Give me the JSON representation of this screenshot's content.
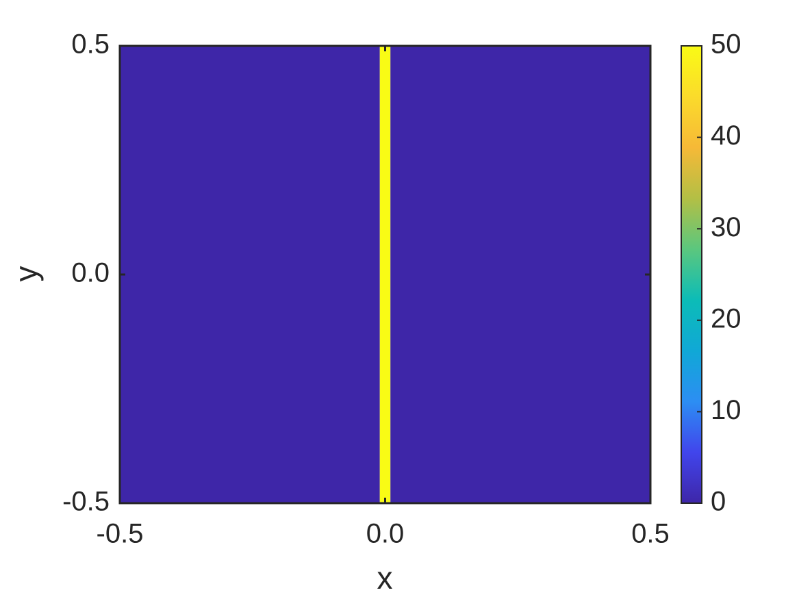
{
  "chart_data": {
    "type": "heatmap",
    "x_label": "x",
    "y_label": "y",
    "x_bins": [
      -0.5,
      -0.01,
      0.01,
      0.5
    ],
    "values": [
      0,
      50,
      0
    ],
    "xlim": [
      -0.5,
      0.5
    ],
    "ylim": [
      -0.5,
      0.5
    ],
    "xticks": [
      -0.5,
      {
        "value": 0,
        "label": "0.0"
      },
      0.5
    ],
    "yticks": [
      -0.5,
      {
        "value": 0,
        "label": "0.0"
      },
      0.5
    ],
    "clim": [
      0,
      50
    ],
    "cticks": [
      0,
      10,
      20,
      30,
      40,
      50
    ],
    "colormap": [
      "#3e26a8",
      "#4145ec",
      "#2c8ef3",
      "#10a8d6",
      "#0cbcb7",
      "#5bc77e",
      "#b3bf45",
      "#f6b937",
      "#fbdb2b",
      "#f9fb15"
    ]
  }
}
